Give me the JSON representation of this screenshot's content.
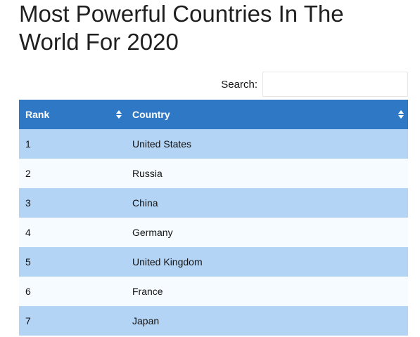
{
  "page": {
    "title": "Most Powerful Countries In The World For 2020"
  },
  "search": {
    "label": "Search:",
    "value": "",
    "placeholder": ""
  },
  "table": {
    "columns": [
      {
        "label": "Rank",
        "sort_icon": "sort-both-icon"
      },
      {
        "label": "Country",
        "sort_icon": "sort-both-icon"
      }
    ],
    "rows": [
      {
        "rank": "1",
        "country": "United States"
      },
      {
        "rank": "2",
        "country": "Russia"
      },
      {
        "rank": "3",
        "country": "China"
      },
      {
        "rank": "4",
        "country": "Germany"
      },
      {
        "rank": "5",
        "country": "United Kingdom"
      },
      {
        "rank": "6",
        "country": "France"
      },
      {
        "rank": "7",
        "country": "Japan"
      }
    ]
  },
  "colors": {
    "header_bg": "#2f78c6",
    "row_odd_bg": "#b3d4f5",
    "row_even_bg": "#f5fbff"
  }
}
